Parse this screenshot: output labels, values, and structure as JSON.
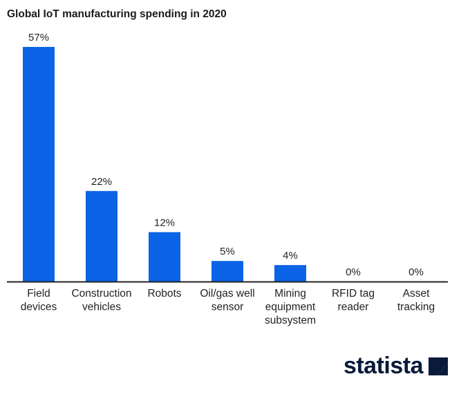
{
  "chart_data": {
    "type": "bar",
    "title": "Global IoT manufacturing spending in 2020",
    "categories": [
      [
        "Field",
        "devices"
      ],
      [
        "Construction",
        "vehicles"
      ],
      [
        "Robots"
      ],
      [
        "Oil/gas well",
        "sensor"
      ],
      [
        "Mining",
        "equipment",
        "subsystem"
      ],
      [
        "RFID tag",
        "reader"
      ],
      [
        "Asset",
        "tracking"
      ]
    ],
    "values": [
      57,
      22,
      12,
      5,
      4,
      0,
      0
    ],
    "value_labels": [
      "57%",
      "22%",
      "12%",
      "5%",
      "4%",
      "0%",
      "0%"
    ],
    "unit": "%",
    "xlabel": "",
    "ylabel": "",
    "ylim": [
      0,
      57
    ],
    "grid": false,
    "bar_color": "#0b63e5"
  },
  "brand": {
    "name": "statista",
    "color": "#0a1a3a"
  }
}
